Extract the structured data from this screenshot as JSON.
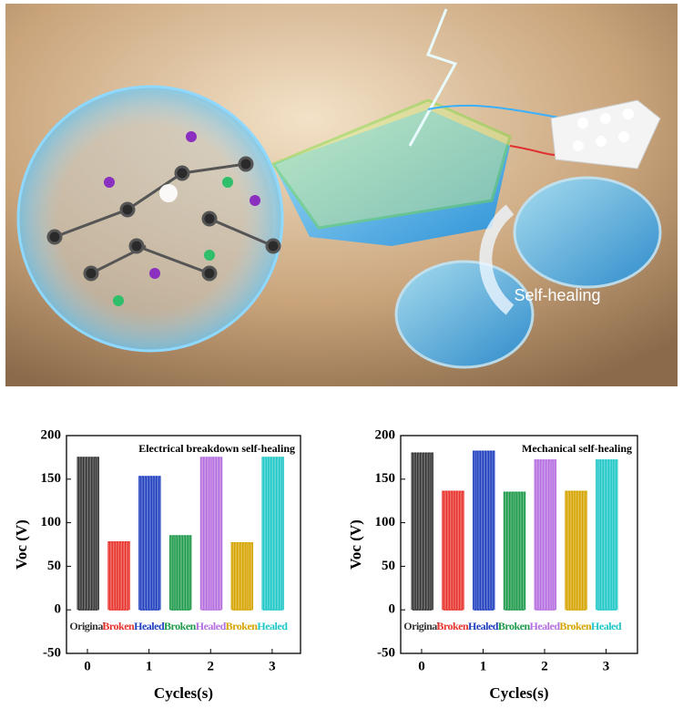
{
  "illustration": {
    "label": "Self-healing"
  },
  "chart_data": [
    {
      "type": "pulse",
      "annotation": "Electrical breakdown self-healing",
      "x_label": "Cycles(s)",
      "y_label": "Voc (V)",
      "x": [
        0,
        0.5,
        1,
        1.5,
        2,
        2.5,
        3
      ],
      "labels": [
        "Original",
        "Broken",
        "Healed",
        "Broken",
        "Healed",
        "Broken",
        "Healed"
      ],
      "values": [
        175,
        78,
        153,
        85,
        175,
        77,
        175
      ],
      "colors": [
        "#333333",
        "#e8322b",
        "#1f3fbf",
        "#1d9a4a",
        "#b56ee0",
        "#d6a400",
        "#1fc7c7"
      ],
      "xlim": [
        -0.34,
        3.46
      ],
      "xticks": [
        0,
        1,
        2,
        3
      ],
      "ylim": [
        -50,
        200
      ],
      "yticks": [
        -50,
        0,
        50,
        100,
        150,
        200
      ]
    },
    {
      "type": "pulse",
      "annotation": "Mechanical self-healing",
      "x_label": "Cycles(s)",
      "y_label": "Voc (V)",
      "x": [
        0,
        0.5,
        1,
        1.5,
        2,
        2.5,
        3
      ],
      "labels": [
        "Original",
        "Broken",
        "Healed",
        "Broken",
        "Healed",
        "Broken",
        "Healed"
      ],
      "values": [
        180,
        136,
        182,
        135,
        172,
        136,
        172
      ],
      "colors": [
        "#333333",
        "#e8322b",
        "#1f3fbf",
        "#1d9a4a",
        "#b56ee0",
        "#d6a400",
        "#1fc7c7"
      ],
      "xlim": [
        -0.34,
        3.51
      ],
      "xticks": [
        0,
        1,
        2,
        3
      ],
      "ylim": [
        -50,
        200
      ],
      "yticks": [
        -50,
        0,
        50,
        100,
        150,
        200
      ]
    }
  ]
}
